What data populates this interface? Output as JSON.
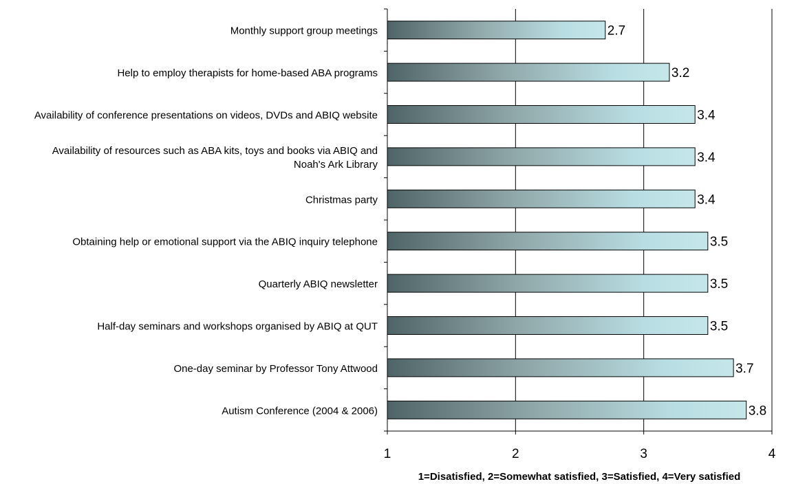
{
  "chart_data": {
    "type": "bar",
    "orientation": "horizontal",
    "categories": [
      [
        "Monthly support group meetings"
      ],
      [
        "Help to employ therapists for home-based ABA programs"
      ],
      [
        "Availability of conference presentations on videos, DVDs and ABIQ website"
      ],
      [
        "Availability of resources such as ABA kits, toys and books via ABIQ and",
        "Noah's Ark Library"
      ],
      [
        "Christmas party"
      ],
      [
        "Obtaining help or emotional support via the ABIQ inquiry telephone"
      ],
      [
        "Quarterly ABIQ newsletter"
      ],
      [
        "Half-day seminars and workshops organised by ABIQ at QUT"
      ],
      [
        "One-day seminar by Professor Tony Attwood"
      ],
      [
        "Autism Conference (2004 & 2006)"
      ]
    ],
    "values": [
      2.7,
      3.2,
      3.4,
      3.4,
      3.4,
      3.5,
      3.5,
      3.5,
      3.7,
      3.8
    ],
    "value_labels": [
      "2.7",
      "3.2",
      "3.4",
      "3.4",
      "3.4",
      "3.5",
      "3.5",
      "3.5",
      "3.7",
      "3.8"
    ],
    "xlim": [
      1,
      4
    ],
    "xticks": [
      1,
      2,
      3,
      4
    ],
    "xtick_labels": [
      "1",
      "2",
      "3",
      "4"
    ],
    "xlabel": "1=Disatisfied, 2=Somewhat satisfied, 3=Satisfied, 4=Very satisfied",
    "grid": "vertical",
    "legend": "none",
    "bar_fill": "horizontal gradient",
    "colors": {
      "bar_start": "#4f6466",
      "bar_mid": "#8fa6a8",
      "bar_end": "#b8dde2",
      "bar_end_light": "#c5e7ea",
      "grid": "#000000"
    }
  }
}
